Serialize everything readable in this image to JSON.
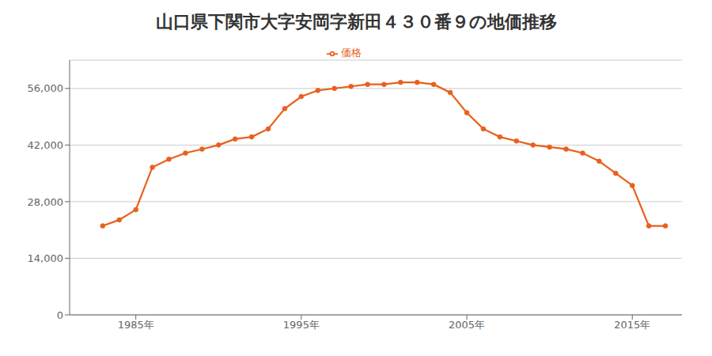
{
  "chart_data": {
    "type": "line",
    "title": "山口県下関市大字安岡字新田４３０番９の地価推移",
    "x": [
      1983,
      1984,
      1985,
      1986,
      1987,
      1988,
      1989,
      1990,
      1991,
      1992,
      1993,
      1994,
      1995,
      1996,
      1997,
      1998,
      1999,
      2000,
      2001,
      2002,
      2003,
      2004,
      2005,
      2006,
      2007,
      2008,
      2009,
      2010,
      2011,
      2012,
      2013,
      2014,
      2015,
      2016,
      2017
    ],
    "series": [
      {
        "name": "価格",
        "color": "#E8601C",
        "marker": "circle",
        "values": [
          22000,
          23500,
          26000,
          36500,
          38500,
          40000,
          41000,
          42000,
          43500,
          44000,
          46000,
          51000,
          54000,
          55500,
          56000,
          56500,
          57000,
          57000,
          57500,
          57500,
          57000,
          55000,
          50000,
          46000,
          44000,
          43000,
          42000,
          41500,
          41000,
          40000,
          38000,
          35000,
          32000,
          22000,
          22000
        ]
      }
    ],
    "xlim": [
      1981,
      2018
    ],
    "ylim": [
      0,
      63000
    ],
    "xticks": [
      {
        "value": 1985,
        "label": "1985年"
      },
      {
        "value": 1995,
        "label": "1995年"
      },
      {
        "value": 2005,
        "label": "2005年"
      },
      {
        "value": 2015,
        "label": "2015年"
      }
    ],
    "yticks": [
      0,
      {
        "value": 14000,
        "label": "14,000"
      },
      {
        "value": 28000,
        "label": "28,000"
      },
      {
        "value": 42000,
        "label": "42,000"
      },
      {
        "value": 56000,
        "label": "56,000"
      }
    ],
    "grid": true,
    "legend": "top"
  }
}
